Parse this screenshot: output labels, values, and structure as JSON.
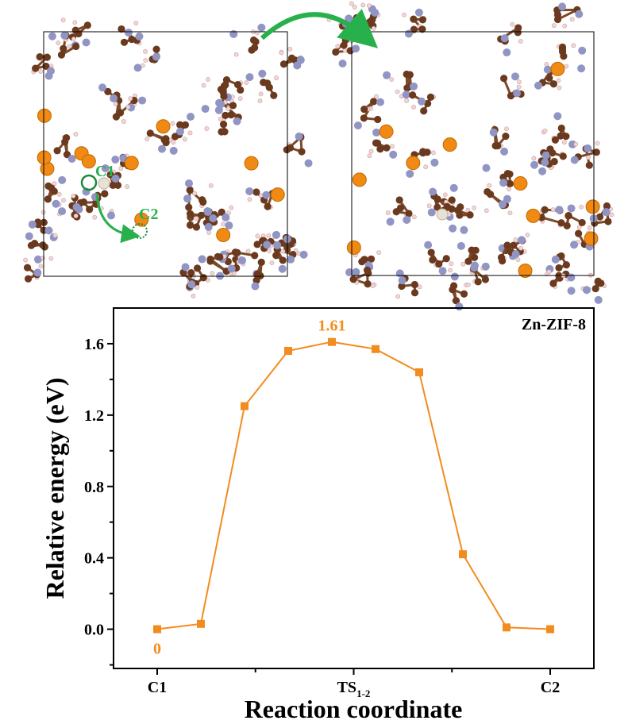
{
  "structures": {
    "labels": [
      "C1",
      "C2"
    ]
  },
  "chart_data": {
    "type": "line",
    "title": "Zn-ZIF-8",
    "xlabel": "Reaction coordinate",
    "ylabel": "Relative energy (eV)",
    "x": [
      0,
      1,
      2,
      3,
      4,
      5,
      6,
      7,
      8,
      9
    ],
    "values": [
      0,
      0.03,
      1.25,
      1.56,
      1.61,
      1.57,
      1.44,
      0.42,
      0.01,
      0.0
    ],
    "value_labels": [
      "0",
      null,
      null,
      null,
      "1.61",
      null,
      null,
      null,
      null,
      null
    ],
    "color": "#f28c1e",
    "xlim": [
      -1,
      10
    ],
    "ylim": [
      -0.22,
      1.8
    ],
    "xticks": [
      {
        "value": 0,
        "label": "C1"
      },
      {
        "value": 4.5,
        "label": "TS",
        "subscript": "1-2"
      },
      {
        "value": 9,
        "label": "C2"
      }
    ],
    "minor_xticks": [
      2.25,
      6.75
    ],
    "yticks": [
      {
        "value": 0,
        "label": "0.0"
      },
      {
        "value": 0.4,
        "label": "0.4"
      },
      {
        "value": 0.8,
        "label": "0.8"
      },
      {
        "value": 1.2,
        "label": "1.2"
      },
      {
        "value": 1.6,
        "label": "1.6"
      }
    ],
    "minor_yticks": [
      -0.2,
      0.2,
      0.6,
      1.0,
      1.4
    ]
  }
}
